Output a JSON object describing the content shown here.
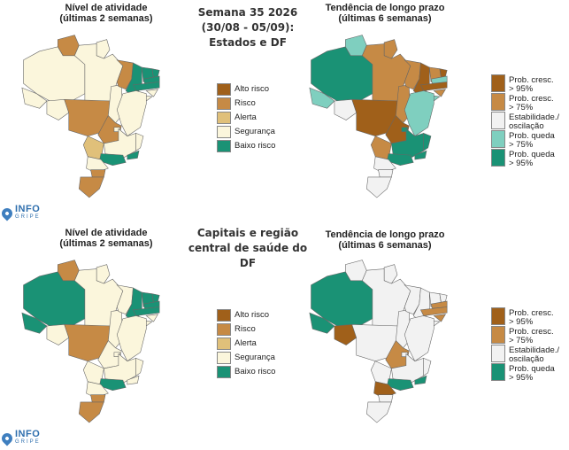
{
  "colors": {
    "dark_brown": "#a0601a",
    "brown": "#c68a45",
    "tan": "#e0c07a",
    "cream": "#fbf6dc",
    "teal": "#1a9275",
    "light_teal": "#7fcfbf",
    "light_grey": "#f2f2f2"
  },
  "center_title_top": [
    "Semana 35 2026",
    "(30/08 - 05/09):",
    "Estados e DF"
  ],
  "center_title_bottom": [
    "Capitais e região",
    "central de saúde do DF"
  ],
  "panel_titles": {
    "activity": [
      "Nível de atividade",
      "(últimas 2 semanas)"
    ],
    "trend": [
      "Tendência de longo prazo",
      "(últimas 6 semanas)"
    ]
  },
  "legend_activity": [
    {
      "label": "Alto risco",
      "color": "#a0601a"
    },
    {
      "label": "Risco",
      "color": "#c68a45"
    },
    {
      "label": "Alerta",
      "color": "#e0c07a"
    },
    {
      "label": "Segurança",
      "color": "#fbf6dc"
    },
    {
      "label": "Baixo risco",
      "color": "#1a9275"
    }
  ],
  "legend_trend_top": [
    {
      "label": "Prob. cresc.\n> 95%",
      "color": "#a0601a"
    },
    {
      "label": "Prob. cresc.\n> 75%",
      "color": "#c68a45"
    },
    {
      "label": "Estabilidade./\noscilação",
      "color": "#f2f2f2"
    },
    {
      "label": "Prob. queda\n> 75%",
      "color": "#7fcfbf"
    },
    {
      "label": "Prob. queda\n> 95%",
      "color": "#1a9275"
    }
  ],
  "legend_trend_bottom": [
    {
      "label": "Prob. cresc.\n> 95%",
      "color": "#a0601a"
    },
    {
      "label": "Prob. cresc.\n> 75%",
      "color": "#c68a45"
    },
    {
      "label": "Estabilidade./\noscilação",
      "color": "#f2f2f2"
    },
    {
      "label": "Prob. queda\n> 95%",
      "color": "#1a9275"
    }
  ],
  "logo": {
    "word1": "INFO",
    "word2": "GRIPE"
  },
  "maps": {
    "activity_states": {
      "AM": "cream",
      "RR": "brown",
      "AP": "cream",
      "PA": "cream",
      "AC": "cream",
      "RO": "cream",
      "MT": "brown",
      "TO": "cream",
      "MA": "brown",
      "PI": "teal",
      "CE": "teal",
      "RN": "teal",
      "PB": "teal",
      "PE": "teal",
      "AL": "cream",
      "SE": "cream",
      "BA": "cream",
      "GO": "brown",
      "DF": "cream",
      "MS": "tan",
      "MG": "cream",
      "ES": "cream",
      "RJ": "teal",
      "SP": "teal",
      "PR": "cream",
      "SC": "brown",
      "RS": "brown"
    },
    "trend_states": {
      "AM": "teal",
      "RR": "light_teal",
      "AP": "brown",
      "PA": "brown",
      "AC": "light_teal",
      "RO": "light_grey",
      "MT": "dark_brown",
      "TO": "brown",
      "MA": "brown",
      "PI": "dark_brown",
      "CE": "brown",
      "RN": "dark_brown",
      "PB": "light_teal",
      "PE": "dark_brown",
      "AL": "brown",
      "SE": "light_teal",
      "BA": "light_teal",
      "GO": "dark_brown",
      "DF": "teal",
      "MS": "brown",
      "MG": "teal",
      "ES": "teal",
      "RJ": "teal",
      "SP": "teal",
      "PR": "light_grey",
      "SC": "light_grey",
      "RS": "light_grey"
    },
    "activity_capitals": {
      "AM": "teal",
      "RR": "brown",
      "AP": "cream",
      "PA": "cream",
      "AC": "teal",
      "RO": "cream",
      "MT": "brown",
      "TO": "cream",
      "MA": "cream",
      "PI": "teal",
      "CE": "teal",
      "RN": "teal",
      "PB": "teal",
      "PE": "teal",
      "AL": "cream",
      "SE": "cream",
      "BA": "cream",
      "GO": "cream",
      "DF": "cream",
      "MS": "cream",
      "MG": "cream",
      "ES": "cream",
      "RJ": "cream",
      "SP": "teal",
      "PR": "cream",
      "SC": "brown",
      "RS": "brown"
    },
    "trend_capitals": {
      "AM": "teal",
      "RR": "light_grey",
      "AP": "light_grey",
      "PA": "light_grey",
      "AC": "teal",
      "RO": "dark_brown",
      "MT": "light_grey",
      "TO": "light_grey",
      "MA": "light_grey",
      "PI": "light_grey",
      "CE": "light_grey",
      "RN": "light_grey",
      "PB": "brown",
      "PE": "brown",
      "AL": "brown",
      "SE": "light_grey",
      "BA": "light_grey",
      "GO": "brown",
      "DF": "light_grey",
      "MS": "light_grey",
      "MG": "light_grey",
      "ES": "light_grey",
      "RJ": "teal",
      "SP": "teal",
      "PR": "dark_brown",
      "SC": "light_grey",
      "RS": "light_grey"
    }
  }
}
